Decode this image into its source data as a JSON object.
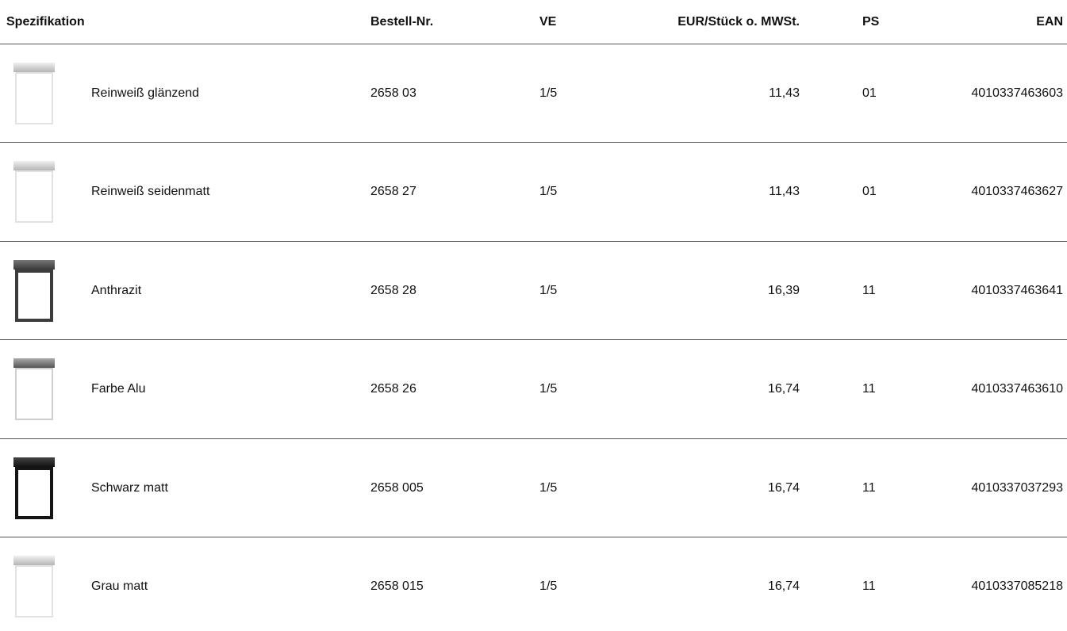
{
  "table": {
    "header": [
      "Spezifikation",
      "Bestell-Nr.",
      "VE",
      "EUR/Stück o. MWSt.",
      "PS",
      "EAN"
    ],
    "rows": [
      [
        "Reinweiß glänzend",
        "2658 03",
        "1/5",
        "11,43",
        "01",
        "4010337463603"
      ],
      [
        "Reinweiß seidenmatt",
        "2658 27",
        "1/5",
        "11,43",
        "01",
        "4010337463627"
      ],
      [
        "Anthrazit",
        "2658 28",
        "1/5",
        "16,39",
        "11",
        "4010337463641"
      ],
      [
        "Farbe Alu",
        "2658 26",
        "1/5",
        "16,74",
        "11",
        "4010337463610"
      ],
      [
        "Schwarz matt",
        "2658 005",
        "1/5",
        "16,74",
        "11",
        "4010337037293"
      ],
      [
        "Grau matt",
        "2658 015",
        "1/5",
        "16,74",
        "11",
        "4010337085218"
      ]
    ]
  }
}
